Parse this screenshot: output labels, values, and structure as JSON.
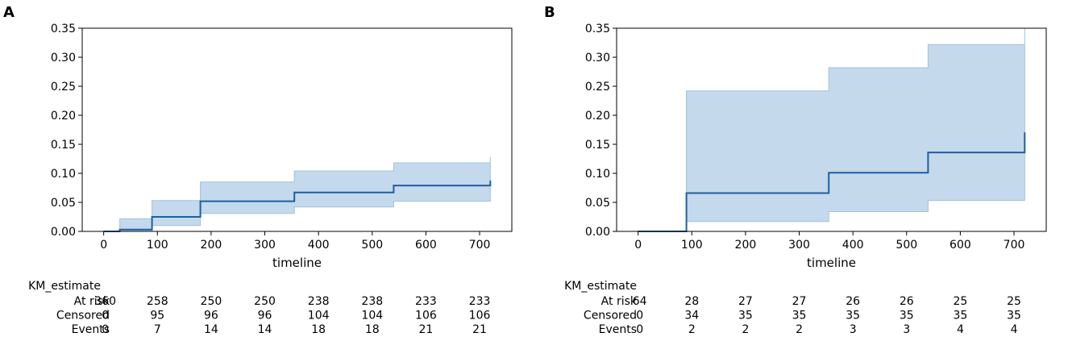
{
  "chart_data": [
    {
      "type": "line",
      "panel_label": "A",
      "xlabel": "timeline",
      "ylabel": "",
      "xlim": [
        -40,
        760
      ],
      "ylim": [
        0,
        0.35
      ],
      "xticks": [
        0,
        100,
        200,
        300,
        400,
        500,
        600,
        700
      ],
      "yticks": [
        0.0,
        0.05,
        0.1,
        0.15,
        0.2,
        0.25,
        0.3,
        0.35
      ],
      "grid": false,
      "series": [
        {
          "name": "KM_estimate",
          "color": "#1f5fa0",
          "step_x": [
            0,
            30,
            90,
            180,
            355,
            540,
            720
          ],
          "step_y": [
            0.0,
            0.003,
            0.025,
            0.052,
            0.067,
            0.079,
            0.087
          ],
          "ci_lower": [
            0.0,
            0.0,
            0.01,
            0.031,
            0.042,
            0.052,
            0.052
          ],
          "ci_upper": [
            0.0,
            0.022,
            0.053,
            0.085,
            0.104,
            0.118,
            0.128
          ]
        }
      ],
      "risk_table": {
        "title": "KM_estimate",
        "rows": [
          {
            "label": "At risk",
            "values": [
              "360",
              "258",
              "250",
              "250",
              "238",
              "238",
              "233",
              "233"
            ]
          },
          {
            "label": "Censored",
            "values": [
              "0",
              "95",
              "96",
              "96",
              "104",
              "104",
              "106",
              "106"
            ]
          },
          {
            "label": "Events",
            "values": [
              "0",
              "7",
              "14",
              "14",
              "18",
              "18",
              "21",
              "21"
            ]
          }
        ]
      }
    },
    {
      "type": "line",
      "panel_label": "B",
      "xlabel": "timeline",
      "ylabel": "",
      "xlim": [
        -40,
        760
      ],
      "ylim": [
        0,
        0.35
      ],
      "xticks": [
        0,
        100,
        200,
        300,
        400,
        500,
        600,
        700
      ],
      "yticks": [
        0.0,
        0.05,
        0.1,
        0.15,
        0.2,
        0.25,
        0.3,
        0.35
      ],
      "grid": false,
      "series": [
        {
          "name": "KM_estimate",
          "color": "#1f5fa0",
          "step_x": [
            0,
            90,
            355,
            540,
            720
          ],
          "step_y": [
            0.0,
            0.066,
            0.101,
            0.136,
            0.17
          ],
          "ci_lower": [
            0.0,
            0.017,
            0.034,
            0.053,
            0.053
          ],
          "ci_upper": [
            0.0,
            0.242,
            0.282,
            0.322,
            0.35
          ]
        }
      ],
      "risk_table": {
        "title": "KM_estimate",
        "rows": [
          {
            "label": "At risk",
            "values": [
              "64",
              "28",
              "27",
              "27",
              "26",
              "26",
              "25",
              "25"
            ]
          },
          {
            "label": "Censored",
            "values": [
              "0",
              "34",
              "35",
              "35",
              "35",
              "35",
              "35",
              "35"
            ]
          },
          {
            "label": "Events",
            "values": [
              "0",
              "2",
              "2",
              "2",
              "3",
              "3",
              "4",
              "4"
            ]
          }
        ]
      }
    }
  ]
}
